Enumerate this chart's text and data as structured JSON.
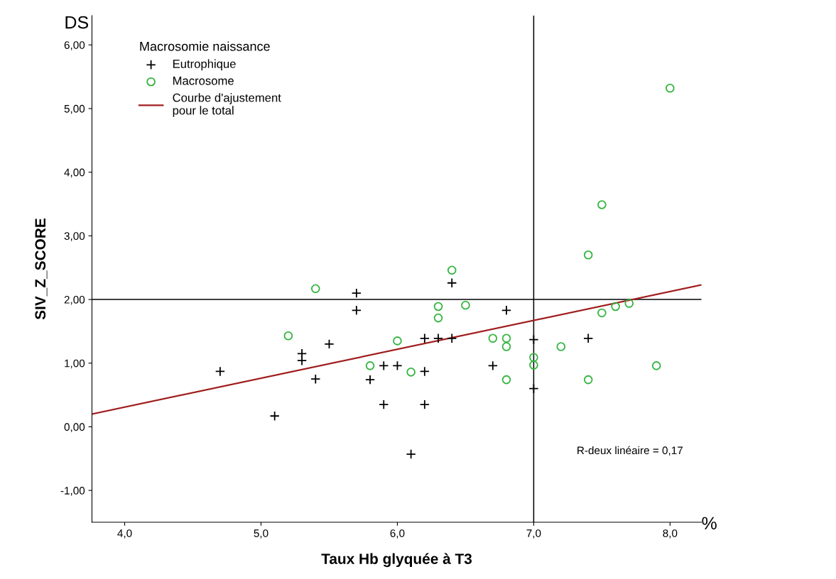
{
  "chart_data": {
    "type": "scatter",
    "xlabel": "Taux Hb glyquée à T3",
    "ylabel": "SIV_Z_SCORE",
    "legend_title": "Macrosomie naissance",
    "legend": "top left",
    "grid": false,
    "xlim": [
      3.76,
      8.23
    ],
    "ylim": [
      -1.5,
      6.46
    ],
    "xticks": [
      {
        "value": 4,
        "label": "4,0"
      },
      {
        "value": 5,
        "label": "5,0"
      },
      {
        "value": 6,
        "label": "6,0"
      },
      {
        "value": 7,
        "label": "7,0"
      },
      {
        "value": 8,
        "label": "8,0"
      }
    ],
    "yticks": [
      {
        "value": -1,
        "label": "-1,00"
      },
      {
        "value": 0,
        "label": "0,00"
      },
      {
        "value": 1,
        "label": "1,00"
      },
      {
        "value": 2,
        "label": "2,00"
      },
      {
        "value": 3,
        "label": "3,00"
      },
      {
        "value": 4,
        "label": "4,00"
      },
      {
        "value": 5,
        "label": "5,00"
      },
      {
        "value": 6,
        "label": "6,00"
      }
    ],
    "series": [
      {
        "name": "Eutrophique",
        "marker": "cross",
        "color": "#000000",
        "x": [
          4.7,
          5.1,
          5.3,
          5.3,
          5.4,
          5.5,
          5.7,
          5.7,
          5.8,
          5.9,
          5.9,
          6.0,
          6.1,
          6.2,
          6.2,
          6.2,
          6.3,
          6.4,
          6.4,
          6.7,
          6.8,
          7.0,
          7.0,
          7.4
        ],
        "values": [
          0.87,
          0.17,
          1.15,
          1.04,
          0.75,
          1.3,
          2.1,
          1.83,
          0.74,
          0.96,
          0.35,
          0.96,
          -0.43,
          1.39,
          0.87,
          0.35,
          1.39,
          1.39,
          2.26,
          0.96,
          1.83,
          1.37,
          0.6,
          1.39
        ]
      },
      {
        "name": "Macrosome",
        "marker": "circle",
        "color": "#33b540",
        "x": [
          5.2,
          5.4,
          5.8,
          6.0,
          6.1,
          6.3,
          6.3,
          6.4,
          6.5,
          6.7,
          6.8,
          6.8,
          6.8,
          7.0,
          7.0,
          7.2,
          7.4,
          7.4,
          7.5,
          7.5,
          7.6,
          7.7,
          7.9,
          8.0
        ],
        "values": [
          1.43,
          2.17,
          0.96,
          1.35,
          0.86,
          1.89,
          1.71,
          2.46,
          1.91,
          1.39,
          1.39,
          1.26,
          0.74,
          1.09,
          0.97,
          1.26,
          2.7,
          0.74,
          3.49,
          1.79,
          1.89,
          1.94,
          0.96,
          5.32
        ]
      },
      {
        "name": "Courbe d'ajustement\npour le total",
        "type": "line",
        "marker": "none",
        "line_style": "solid",
        "color": "#a01c1c",
        "x": [
          3.76,
          8.23
        ],
        "values": [
          0.2,
          2.23
        ]
      }
    ],
    "ref_lines": [
      {
        "axis": "x",
        "value": 7.0,
        "color": "#000000"
      },
      {
        "axis": "y",
        "value": 2.0,
        "color": "#000000"
      }
    ],
    "annotations": [
      "DS",
      "R-deux linéaire = 0,17",
      "%"
    ]
  }
}
